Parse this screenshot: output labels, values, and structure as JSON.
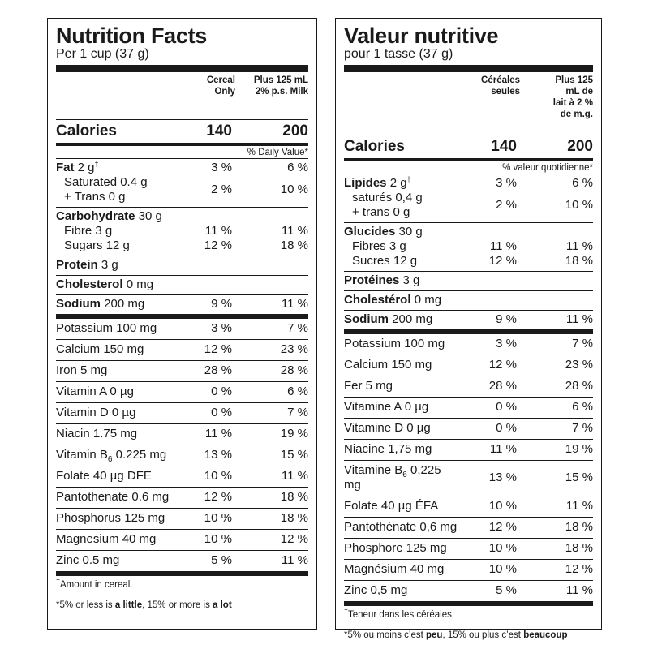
{
  "english": {
    "title": "Nutrition Facts",
    "serving": "Per 1 cup (37 g)",
    "col1_header": "Cereal Only",
    "col2_header": "Plus 125 mL 2% p.s. Milk",
    "calories_label": "Calories",
    "calories_1": "140",
    "calories_2": "200",
    "dv_header": "% Daily Value*",
    "fat": {
      "label": "Fat",
      "amount": "2 g",
      "mark": "†",
      "dv1": "3 %",
      "dv2": "6 %"
    },
    "saturated": {
      "label": "Saturated 0.4 g"
    },
    "trans": {
      "label": "+ Trans 0 g",
      "dv1": "2 %",
      "dv2": "10 %"
    },
    "carbohydrate": {
      "label": "Carbohydrate",
      "amount": "30 g"
    },
    "fibre": {
      "label": "Fibre 3 g",
      "dv1": "11 %",
      "dv2": "11 %"
    },
    "sugars": {
      "label": "Sugars 12 g",
      "dv1": "12 %",
      "dv2": "18 %"
    },
    "protein": {
      "label": "Protein",
      "amount": "3 g"
    },
    "cholesterol": {
      "label": "Cholesterol",
      "amount": "0 mg"
    },
    "sodium": {
      "label": "Sodium",
      "amount": "200 mg",
      "dv1": "9 %",
      "dv2": "11 %"
    },
    "nutrients": [
      {
        "label": "Potassium 100 mg",
        "dv1": "3 %",
        "dv2": "7 %"
      },
      {
        "label": "Calcium 150 mg",
        "dv1": "12 %",
        "dv2": "23 %"
      },
      {
        "label": "Iron 5 mg",
        "dv1": "28 %",
        "dv2": "28 %"
      },
      {
        "label": "Vitamin A 0 µg",
        "dv1": "0 %",
        "dv2": "6 %"
      },
      {
        "label": "Vitamin D 0 µg",
        "dv1": "0 %",
        "dv2": "7 %"
      },
      {
        "label": "Niacin 1.75 mg",
        "dv1": "11 %",
        "dv2": "19 %"
      },
      {
        "label_pre": "Vitamin B",
        "label_sub": "6",
        "label_post": " 0.225 mg",
        "dv1": "13 %",
        "dv2": "15 %"
      },
      {
        "label": "Folate 40 µg DFE",
        "dv1": "10 %",
        "dv2": "11 %"
      },
      {
        "label": "Pantothenate 0.6 mg",
        "dv1": "12 %",
        "dv2": "18 %"
      },
      {
        "label": "Phosphorus 125 mg",
        "dv1": "10 %",
        "dv2": "18 %"
      },
      {
        "label": "Magnesium 40 mg",
        "dv1": "10 %",
        "dv2": "12 %"
      },
      {
        "label": "Zinc 0.5 mg",
        "dv1": "5 %",
        "dv2": "11 %"
      }
    ],
    "footnote_mark": "†",
    "footnote": "Amount in cereal.",
    "foot_star": "*5% or less is ",
    "foot_little": "a little",
    "foot_mid": ", 15% or more is ",
    "foot_lot": "a lot"
  },
  "french": {
    "title": "Valeur nutritive",
    "serving": "pour 1 tasse (37 g)",
    "col1_header": "Céréales seules",
    "col2_header": "Plus 125 mL de lait à 2 % de m.g.",
    "calories_label": "Calories",
    "calories_1": "140",
    "calories_2": "200",
    "dv_header": "% valeur quotidienne*",
    "fat": {
      "label": "Lipides",
      "amount": "2 g",
      "mark": "†",
      "dv1": "3 %",
      "dv2": "6 %"
    },
    "saturated": {
      "label": "saturés 0,4 g"
    },
    "trans": {
      "label": "+ trans 0 g",
      "dv1": "2 %",
      "dv2": "10 %"
    },
    "carbohydrate": {
      "label": "Glucides",
      "amount": "30 g"
    },
    "fibre": {
      "label": "Fibres 3 g",
      "dv1": "11 %",
      "dv2": "11 %"
    },
    "sugars": {
      "label": "Sucres 12 g",
      "dv1": "12 %",
      "dv2": "18 %"
    },
    "protein": {
      "label": "Protéines",
      "amount": "3 g"
    },
    "cholesterol": {
      "label": "Cholestérol",
      "amount": "0 mg"
    },
    "sodium": {
      "label": "Sodium",
      "amount": "200 mg",
      "dv1": "9 %",
      "dv2": "11 %"
    },
    "nutrients": [
      {
        "label": "Potassium 100 mg",
        "dv1": "3 %",
        "dv2": "7 %"
      },
      {
        "label": "Calcium 150 mg",
        "dv1": "12 %",
        "dv2": "23 %"
      },
      {
        "label": "Fer 5 mg",
        "dv1": "28 %",
        "dv2": "28 %"
      },
      {
        "label": "Vitamine A 0 µg",
        "dv1": "0 %",
        "dv2": "6 %"
      },
      {
        "label": "Vitamine D 0 µg",
        "dv1": "0 %",
        "dv2": "7 %"
      },
      {
        "label": "Niacine 1,75 mg",
        "dv1": "11 %",
        "dv2": "19 %"
      },
      {
        "label_pre": "Vitamine B",
        "label_sub": "6",
        "label_post": " 0,225 mg",
        "dv1": "13 %",
        "dv2": "15 %"
      },
      {
        "label": "Folate 40 µg ÉFA",
        "dv1": "10 %",
        "dv2": "11 %"
      },
      {
        "label": "Pantothénate 0,6 mg",
        "dv1": "12 %",
        "dv2": "18 %"
      },
      {
        "label": "Phosphore 125 mg",
        "dv1": "10 %",
        "dv2": "18 %"
      },
      {
        "label": "Magnésium 40 mg",
        "dv1": "10 %",
        "dv2": "12 %"
      },
      {
        "label": "Zinc 0,5 mg",
        "dv1": "5 %",
        "dv2": "11 %"
      }
    ],
    "footnote_mark": "†",
    "footnote": "Teneur dans les céréales.",
    "foot_star": "*5% ou moins c’est ",
    "foot_little": "peu",
    "foot_mid": ", 15% ou plus c’est ",
    "foot_lot": "beaucoup"
  }
}
